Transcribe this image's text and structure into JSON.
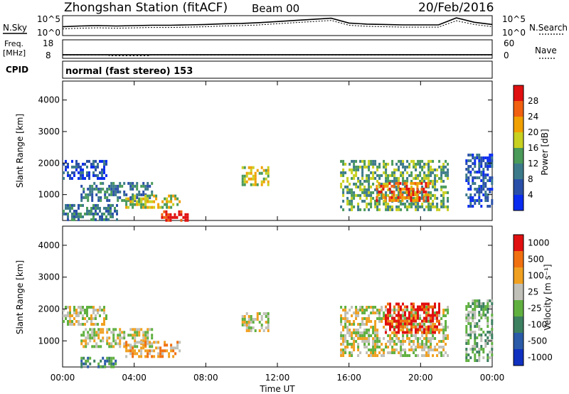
{
  "header": {
    "station": "Zhongshan Station (fitACF)",
    "beam": "Beam 00",
    "date": "20/Feb/2016"
  },
  "chart_data": [
    {
      "type": "line",
      "panel": "noise",
      "left_label": "N.Sky",
      "right_label": "N.Search",
      "left_ticks": [
        "10^5",
        "10^0"
      ],
      "right_ticks": [
        "10^5",
        "10^0"
      ],
      "series": [
        {
          "x": [
            0,
            1,
            2,
            3,
            4,
            5,
            6,
            7,
            8,
            9,
            10,
            11,
            12,
            13,
            14,
            15,
            16,
            17,
            18,
            19,
            20,
            21,
            22,
            23,
            24
          ],
          "values": [
            2.2,
            2.4,
            2.5,
            2.4,
            2.5,
            2.6,
            2.6,
            2.7,
            2.8,
            3.0,
            3.1,
            3.3,
            3.6,
            3.9,
            4.2,
            4.5,
            3.2,
            2.9,
            2.8,
            2.7,
            2.7,
            2.7,
            4.6,
            3.4,
            2.8
          ]
        },
        {
          "x": [
            0,
            1,
            2,
            3,
            4,
            5,
            6,
            7,
            8,
            9,
            10,
            11,
            12,
            13,
            14,
            15,
            16,
            17,
            18,
            19,
            20,
            21,
            22,
            23,
            24
          ],
          "values": [
            1.6,
            1.8,
            1.9,
            1.8,
            1.9,
            2.0,
            2.0,
            2.1,
            2.2,
            2.4,
            2.5,
            2.7,
            3.0,
            3.3,
            3.6,
            3.9,
            2.6,
            2.3,
            2.2,
            2.1,
            2.1,
            2.1,
            3.8,
            2.8,
            2.2
          ]
        }
      ]
    },
    {
      "type": "scatter",
      "panel": "frequency",
      "left_label_lines": [
        "Freq.",
        "[MHz]"
      ],
      "right_label": "Nave",
      "left_ticks": [
        "18",
        "8"
      ],
      "right_ticks": [
        "60",
        "0"
      ],
      "freq_level": 10.5,
      "nave_level": 14,
      "nave_dip": {
        "x": [
          2.6,
          4.8
        ],
        "value": 10
      }
    },
    {
      "type": "table",
      "panel": "cpid",
      "label": "CPID",
      "text": "normal (fast stereo) 153"
    },
    {
      "type": "heatmap",
      "panel": "power",
      "ylabel": "Slant Range [km]",
      "yticks": [
        1000,
        2000,
        3000,
        4000
      ],
      "ylim": [
        180,
        4600
      ],
      "xlim": [
        0,
        24
      ],
      "colorbar": {
        "label": "Power [dB]",
        "ticks": [
          "4",
          "8",
          "12",
          "16",
          "20",
          "24",
          "28"
        ],
        "colors": [
          "#0a2cf0",
          "#2a4fa8",
          "#3c7a8a",
          "#4a9a5a",
          "#c8d020",
          "#f0a000",
          "#f06010",
          "#e01010"
        ]
      },
      "regions": [
        {
          "t": [
            0,
            2.5
          ],
          "r": [
            1500,
            2100
          ],
          "level": 1
        },
        {
          "t": [
            1,
            5
          ],
          "r": [
            800,
            1400
          ],
          "level": 2
        },
        {
          "t": [
            3.5,
            6.5
          ],
          "r": [
            600,
            1000
          ],
          "level": 4
        },
        {
          "t": [
            5.5,
            7
          ],
          "r": [
            180,
            500
          ],
          "level": 7
        },
        {
          "t": [
            0,
            3
          ],
          "r": [
            180,
            700
          ],
          "level": 2
        },
        {
          "t": [
            10,
            11.5
          ],
          "r": [
            1300,
            1900
          ],
          "level": 4
        },
        {
          "t": [
            15.5,
            21.5
          ],
          "r": [
            500,
            2100
          ],
          "level": 3
        },
        {
          "t": [
            17.5,
            20.5
          ],
          "r": [
            800,
            1400
          ],
          "level": 6
        },
        {
          "t": [
            22.5,
            24
          ],
          "r": [
            600,
            2300
          ],
          "level": 1
        }
      ]
    },
    {
      "type": "heatmap",
      "panel": "velocity",
      "ylabel": "Slant Range [km]",
      "yticks": [
        1000,
        2000,
        3000,
        4000
      ],
      "ylim": [
        180,
        4600
      ],
      "xlim": [
        0,
        24
      ],
      "xlabel": "Time UT",
      "xticks": [
        "00:00",
        "04:00",
        "08:00",
        "12:00",
        "16:00",
        "20:00",
        "00:00"
      ],
      "colorbar": {
        "label": "Velocity [m s⁻¹]",
        "ticks": [
          "1000",
          "500",
          "100",
          "25",
          "-25",
          "-100",
          "-500",
          "-1000"
        ],
        "colors": [
          "#1030c0",
          "#2a5aa8",
          "#3c8060",
          "#60b040",
          "#c0c0b8",
          "#f0a020",
          "#f07010",
          "#e01010"
        ]
      },
      "regions": [
        {
          "t": [
            0,
            2.5
          ],
          "r": [
            1500,
            2100
          ],
          "level": 4
        },
        {
          "t": [
            1,
            5
          ],
          "r": [
            800,
            1400
          ],
          "level": 4
        },
        {
          "t": [
            3.5,
            6.5
          ],
          "r": [
            500,
            1000
          ],
          "level": 5
        },
        {
          "t": [
            1,
            3
          ],
          "r": [
            180,
            500
          ],
          "level": 2
        },
        {
          "t": [
            10,
            11.5
          ],
          "r": [
            1300,
            1900
          ],
          "level": 4
        },
        {
          "t": [
            15.5,
            21.5
          ],
          "r": [
            500,
            2100
          ],
          "level": 4
        },
        {
          "t": [
            18,
            21
          ],
          "r": [
            1300,
            2200
          ],
          "level": 7
        },
        {
          "t": [
            22.5,
            24
          ],
          "r": [
            400,
            2300
          ],
          "level": 3
        }
      ]
    }
  ]
}
